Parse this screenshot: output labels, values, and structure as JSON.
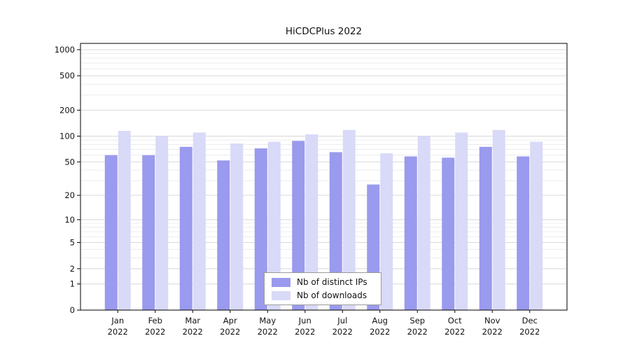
{
  "title": "HiCDCPlus 2022",
  "chart_data": {
    "type": "bar",
    "title": "HiCDCPlus 2022",
    "categories": [
      "Jan",
      "Feb",
      "Mar",
      "Apr",
      "May",
      "Jun",
      "Jul",
      "Aug",
      "Sep",
      "Oct",
      "Nov",
      "Dec"
    ],
    "year": "2022",
    "series": [
      {
        "name": "Nb of distinct IPs",
        "color": "#9a9aee",
        "values": [
          60,
          60,
          75,
          52,
          72,
          88,
          65,
          27,
          58,
          56,
          75,
          58
        ]
      },
      {
        "name": "Nb of downloads",
        "color": "#d9d9f8",
        "values": [
          115,
          100,
          110,
          82,
          86,
          105,
          118,
          63,
          100,
          110,
          118,
          86
        ]
      }
    ],
    "y_ticks": [
      0,
      1,
      2,
      5,
      10,
      20,
      50,
      100,
      200,
      500,
      1000
    ],
    "y_scale": "log1p",
    "ylim": [
      0,
      1000
    ],
    "xlabel": "",
    "ylabel": "",
    "grid": true,
    "legend_position": "bottom-center-inside",
    "colors": {
      "grid_major": "#d8d8d8",
      "grid_minor": "#ececec",
      "axis": "#000000",
      "text": "#111111",
      "background": "#ffffff"
    }
  }
}
